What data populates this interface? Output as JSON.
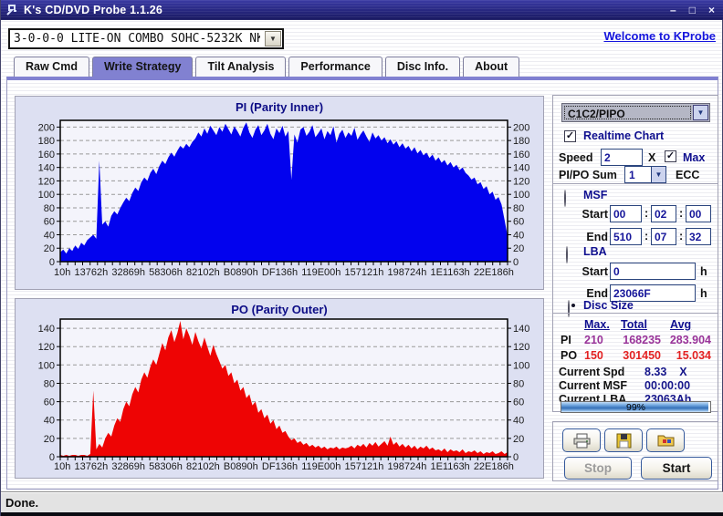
{
  "window": {
    "title": "K's CD/DVD Probe 1.1.26",
    "status": "Done."
  },
  "icons": {
    "minimize": "–",
    "maximize": "□",
    "close": "×",
    "dropdown_arrow": "▼",
    "check": "✓"
  },
  "device_combo": {
    "value": "3-0-0-0 LITE-ON COMBO SOHC-5232K NK07"
  },
  "link": {
    "label": "Welcome to KProbe"
  },
  "tabs": [
    {
      "label": "Raw Cmd"
    },
    {
      "label": "Write Strategy"
    },
    {
      "label": "Tilt Analysis"
    },
    {
      "label": "Performance"
    },
    {
      "label": "Disc Info."
    },
    {
      "label": "About"
    }
  ],
  "active_tab": "Write Strategy",
  "controls": {
    "mode_combo": {
      "value": "C1C2/PIPO"
    },
    "realtime": {
      "label": "Realtime Chart",
      "checked": true
    },
    "speed": {
      "label": "Speed",
      "value": "2",
      "unit": "X"
    },
    "max": {
      "label": "Max",
      "checked": true
    },
    "pipo_sum": {
      "label": "PI/PO Sum",
      "value": "1",
      "unit": "ECC"
    },
    "msf": {
      "label": "MSF",
      "start_label": "Start",
      "end_label": "End",
      "sep": ":",
      "start": [
        "00",
        "02",
        "00"
      ],
      "end": [
        "510",
        "07",
        "32"
      ]
    },
    "lba": {
      "label": "LBA",
      "start_label": "Start",
      "end_label": "End",
      "unit": "h",
      "start": "0",
      "end": "23066F"
    },
    "disc_size": {
      "label": "Disc Size",
      "selected": true
    }
  },
  "stats": {
    "headers": [
      "Max.",
      "Total",
      "Avg"
    ],
    "rows": [
      {
        "name": "PI",
        "max": "210",
        "total": "168235",
        "avg": "283.904"
      },
      {
        "name": "PO",
        "max": "150",
        "total": "301450",
        "avg": "15.034"
      }
    ],
    "current": [
      {
        "label": "Current Spd",
        "value": "8.33    X"
      },
      {
        "label": "Current MSF",
        "value": "00:00:00"
      },
      {
        "label": "Current LBA",
        "value": "23063Ah"
      }
    ],
    "progress": {
      "percent": 99,
      "label": "99%"
    }
  },
  "actions": {
    "stop": "Stop",
    "start": "Start"
  },
  "colors": {
    "pi_fill": "#0202ee",
    "po_fill": "#ee0404",
    "accent_tab": "#8181d1",
    "navy_label": "#0f0f8f",
    "pi_stat": "#993399",
    "po_stat": "#e32222"
  },
  "chart_data": [
    {
      "type": "area",
      "title": "PI (Parity Inner)",
      "xlabel": "",
      "ylabel": "",
      "color": "#0202ee",
      "ylim": [
        0,
        210
      ],
      "ytick_step": 20,
      "ymax_tick": 200,
      "grid": true,
      "x_ticks": [
        "10h",
        "13762h",
        "32869h",
        "58306h",
        "82102h",
        "B0890h",
        "DF136h",
        "119E00h",
        "157121h",
        "198724h",
        "1E1163h",
        "22E186h"
      ],
      "values": [
        14,
        18,
        12,
        20,
        16,
        24,
        19,
        28,
        24,
        32,
        36,
        40,
        34,
        150,
        55,
        60,
        52,
        68,
        75,
        70,
        80,
        88,
        95,
        90,
        102,
        110,
        105,
        118,
        125,
        120,
        132,
        138,
        130,
        142,
        150,
        145,
        155,
        162,
        156,
        165,
        172,
        168,
        175,
        170,
        178,
        183,
        192,
        186,
        198,
        190,
        202,
        195,
        188,
        200,
        193,
        205,
        197,
        189,
        201,
        194,
        186,
        199,
        207,
        192,
        184,
        196,
        203,
        188,
        195,
        205,
        190,
        182,
        198,
        191,
        202,
        186,
        194,
        122,
        189,
        177,
        196,
        200,
        187,
        193,
        203,
        185,
        191,
        198,
        182,
        194,
        188,
        201,
        177,
        190,
        196,
        184,
        192,
        187,
        199,
        181,
        189,
        195,
        186,
        178,
        192,
        183,
        188,
        180,
        185,
        176,
        182,
        174,
        179,
        170,
        176,
        168,
        172,
        164,
        170,
        161,
        166,
        158,
        162,
        154,
        159,
        150,
        155,
        147,
        151,
        143,
        148,
        140,
        144,
        136,
        140,
        132,
        128,
        122,
        125,
        115,
        118,
        108,
        112,
        100,
        104,
        92,
        96,
        85,
        62,
        38
      ]
    },
    {
      "type": "area",
      "title": "PO (Parity Outer)",
      "xlabel": "",
      "ylabel": "",
      "color": "#ee0404",
      "ylim": [
        0,
        150
      ],
      "ytick_step": 20,
      "ymax_tick": 140,
      "grid": true,
      "x_ticks": [
        "10h",
        "13762h",
        "32869h",
        "58306h",
        "82102h",
        "B0890h",
        "DF136h",
        "119E00h",
        "157121h",
        "198724h",
        "1E1163h",
        "22E186h"
      ],
      "values": [
        2,
        1,
        2,
        1,
        2,
        2,
        1,
        2,
        2,
        1,
        3,
        72,
        8,
        14,
        10,
        20,
        26,
        22,
        34,
        42,
        38,
        52,
        60,
        55,
        68,
        76,
        70,
        84,
        92,
        86,
        98,
        106,
        100,
        112,
        124,
        116,
        130,
        138,
        125,
        135,
        148,
        128,
        140,
        132,
        122,
        136,
        126,
        118,
        130,
        120,
        110,
        122,
        112,
        104,
        96,
        100,
        88,
        92,
        80,
        84,
        72,
        76,
        64,
        68,
        56,
        60,
        48,
        52,
        42,
        46,
        36,
        40,
        30,
        34,
        26,
        28,
        22,
        18,
        20,
        15,
        17,
        13,
        15,
        11,
        13,
        10,
        12,
        9,
        11,
        8,
        10,
        9,
        11,
        8,
        10,
        9,
        10,
        12,
        9,
        13,
        11,
        14,
        10,
        15,
        12,
        16,
        11,
        14,
        17,
        12,
        22,
        13,
        16,
        11,
        14,
        10,
        13,
        9,
        12,
        8,
        11,
        9,
        12,
        8,
        10,
        7,
        8,
        6,
        9,
        5,
        8,
        6,
        7,
        5,
        8,
        4,
        6,
        5,
        7,
        4,
        6,
        3,
        5,
        4,
        6,
        3,
        4,
        6,
        3,
        5
      ]
    }
  ]
}
